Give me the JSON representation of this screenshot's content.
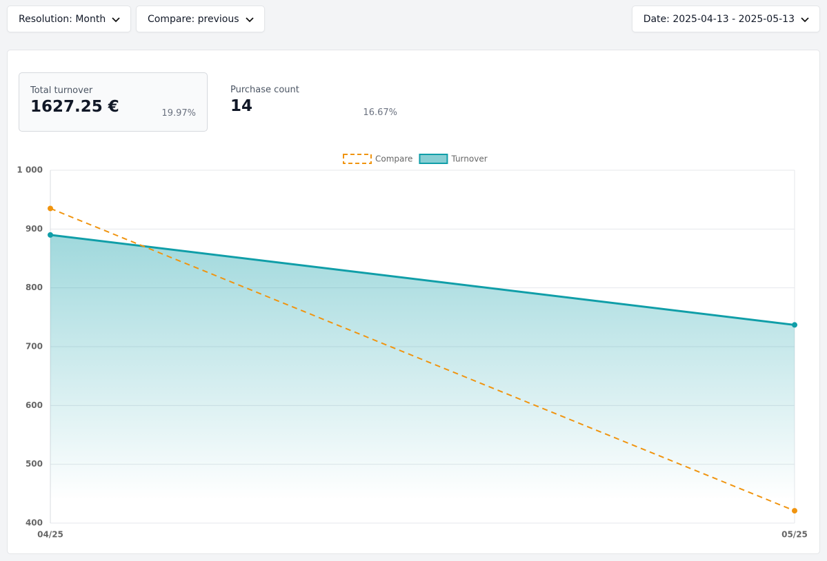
{
  "controls": {
    "resolution": "Resolution: Month",
    "compare": "Compare: previous",
    "date": "Date: 2025-04-13 - 2025-05-13"
  },
  "metrics": [
    {
      "label": "Total turnover",
      "value": "1627.25 €",
      "change": "19.97%"
    },
    {
      "label": "Purchase count",
      "value": "14",
      "change": "16.67%"
    }
  ],
  "chart_data": {
    "type": "line",
    "categories": [
      "04/25",
      "05/25"
    ],
    "series": [
      {
        "name": "Compare",
        "color": "#f0940f",
        "values": [
          935,
          421
        ],
        "dashed": true,
        "fill": false
      },
      {
        "name": "Turnover",
        "color": "#109ea8",
        "values": [
          890,
          737
        ],
        "dashed": false,
        "fill": true
      }
    ],
    "ylim": [
      400,
      1000
    ],
    "yticks": [
      400,
      500,
      600,
      700,
      800,
      900,
      {
        "value": 1000,
        "label": "1 000"
      }
    ],
    "grid": true
  }
}
